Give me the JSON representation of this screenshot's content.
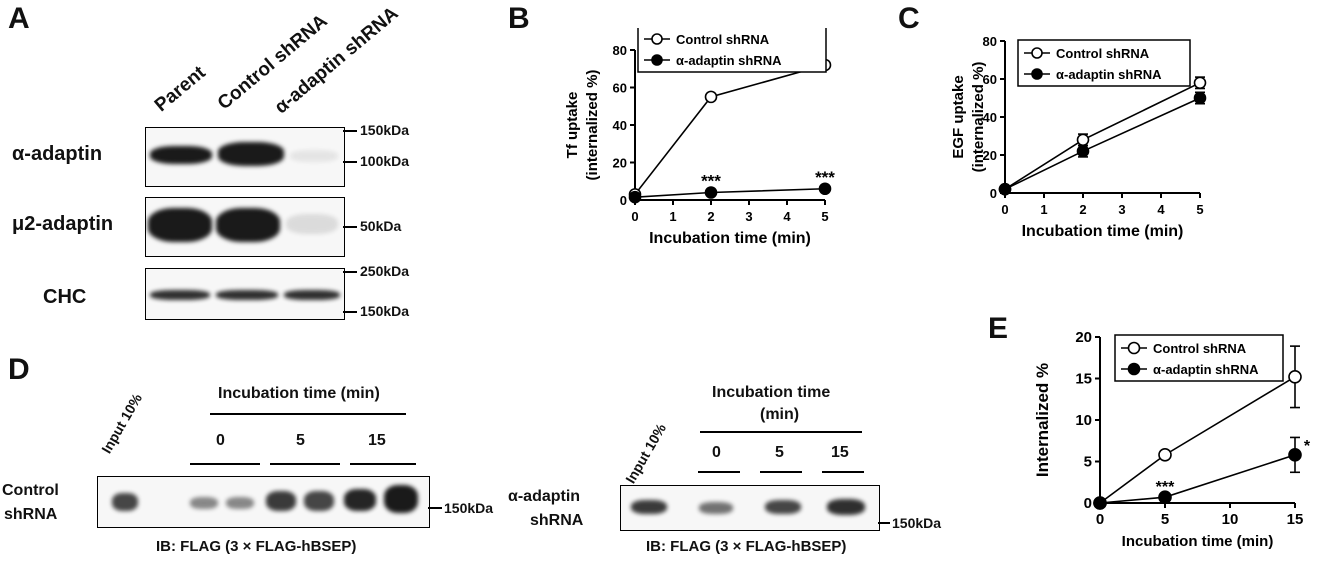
{
  "panels": {
    "a": "A",
    "b": "B",
    "c": "C",
    "d": "D",
    "e": "E"
  },
  "panel_a": {
    "lanes": [
      "Parent",
      "Control shRNA",
      "α-adaptin shRNA"
    ],
    "rows": [
      {
        "label": "α-adaptin",
        "markers": [
          "150kDa",
          "100kDa"
        ],
        "intensity": [
          0.95,
          1.0,
          0.08
        ]
      },
      {
        "label": "μ2-adaptin",
        "markers": [
          "50kDa"
        ],
        "intensity": [
          1.0,
          1.0,
          0.12
        ]
      },
      {
        "label": "CHC",
        "markers": [
          "250kDa",
          "150kDa"
        ],
        "intensity": [
          0.85,
          0.85,
          0.85
        ]
      }
    ]
  },
  "panel_d": {
    "incubation_header": "Incubation time (min)",
    "incubation_header_right_line1": "Incubation time",
    "incubation_header_right_line2": "(min)",
    "input_label": "Input 10%",
    "times": [
      "0",
      "5",
      "15"
    ],
    "left_row_label_1": "Control",
    "left_row_label_2": "shRNA",
    "right_row_label_1": "α-adaptin",
    "right_row_label_2": "shRNA",
    "marker": "150kDa",
    "ib_label": "IB: FLAG (3 × FLAG-hBSEP)"
  },
  "chart_data": [
    {
      "panel": "B",
      "type": "line",
      "xlabel": "Incubation time (min)",
      "ylabel": "Tf uptake (internalized %)",
      "ylabel_line1": "Tf uptake",
      "ylabel_line2": "(internalized %)",
      "xlim": [
        0,
        5
      ],
      "ylim": [
        0,
        80
      ],
      "xticks": [
        "0",
        "1",
        "2",
        "3",
        "4",
        "5"
      ],
      "yticks": [
        "0",
        "20",
        "40",
        "60",
        "80"
      ],
      "series": [
        {
          "name": "Control shRNA",
          "marker": "open-circle",
          "x": [
            0,
            2,
            5
          ],
          "y": [
            3,
            55,
            72
          ]
        },
        {
          "name": "α-adaptin shRNA",
          "marker": "filled-circle",
          "x": [
            0,
            2,
            5
          ],
          "y": [
            1.5,
            4,
            6
          ]
        }
      ],
      "annotations": [
        {
          "x": 2,
          "y": 4,
          "text": "***"
        },
        {
          "x": 5,
          "y": 6,
          "text": "***"
        }
      ],
      "legend": "top-left"
    },
    {
      "panel": "C",
      "type": "line",
      "xlabel": "Incubation time (min)",
      "ylabel": "EGF uptake (internalized %)",
      "ylabel_line1": "EGF uptake",
      "ylabel_line2": "(internalized %)",
      "xlim": [
        0,
        5
      ],
      "ylim": [
        0,
        80
      ],
      "xticks": [
        "0",
        "1",
        "2",
        "3",
        "4",
        "5"
      ],
      "yticks": [
        "0",
        "20",
        "40",
        "60",
        "80"
      ],
      "series": [
        {
          "name": "Control shRNA",
          "marker": "open-circle",
          "x": [
            0,
            2,
            5
          ],
          "y": [
            2,
            28,
            58
          ],
          "err": [
            0.5,
            3,
            3
          ]
        },
        {
          "name": "α-adaptin shRNA",
          "marker": "filled-circle",
          "x": [
            0,
            2,
            5
          ],
          "y": [
            2,
            22,
            50
          ],
          "err": [
            0.5,
            3,
            3
          ]
        }
      ],
      "legend": "top-left"
    },
    {
      "panel": "E",
      "type": "line",
      "xlabel": "Incubation time (min)",
      "ylabel": "Internalized %",
      "xlim": [
        0,
        15
      ],
      "ylim": [
        0,
        20
      ],
      "xticks": [
        "0",
        "5",
        "10",
        "15"
      ],
      "yticks": [
        "0",
        "5",
        "10",
        "15",
        "20"
      ],
      "series": [
        {
          "name": "Control shRNA",
          "marker": "open-circle",
          "x": [
            0,
            5,
            15
          ],
          "y": [
            0,
            5.8,
            15.2
          ],
          "err": [
            0,
            0.2,
            3.7
          ]
        },
        {
          "name": "α-adaptin shRNA",
          "marker": "filled-circle",
          "x": [
            0,
            5,
            15
          ],
          "y": [
            0,
            0.7,
            5.8
          ],
          "err": [
            0,
            0.1,
            2.1
          ]
        }
      ],
      "annotations": [
        {
          "x": 5,
          "y": 0.7,
          "text": "***"
        },
        {
          "x": 15,
          "y": 5.8,
          "text": "*"
        }
      ],
      "legend": "top-left"
    }
  ]
}
